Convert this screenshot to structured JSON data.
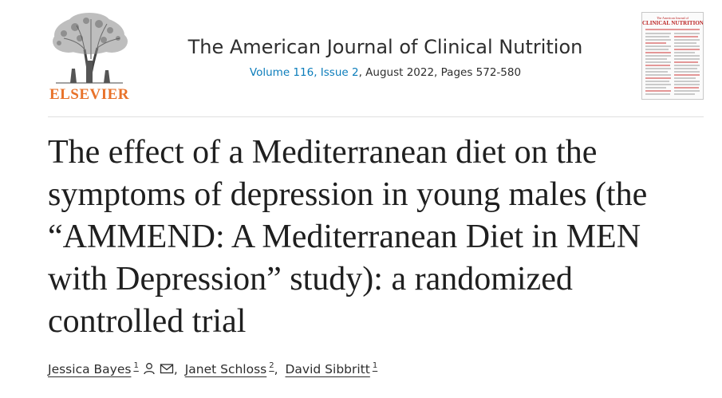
{
  "header": {
    "publisher": "ELSEVIER",
    "journal_title": "The American Journal of Clinical Nutrition",
    "issue_link": "Volume 116, Issue 2",
    "issue_rest": ", August 2022, Pages 572-580",
    "cover_heading_small": "The American Journal of",
    "cover_heading": "CLINICAL NUTRITION"
  },
  "article": {
    "title": "The effect of a Mediterranean diet on the symptoms of depression in young males (the “AMMEND: A Mediterranean Diet in MEN with Depression” study): a randomized controlled trial"
  },
  "authors": [
    {
      "name": "Jessica Bayes",
      "affiliation": "1",
      "icons": [
        "person-icon",
        "envelope-icon"
      ]
    },
    {
      "name": "Janet Schloss",
      "affiliation": "2"
    },
    {
      "name": "David Sibbritt",
      "affiliation": "1"
    }
  ],
  "colors": {
    "publisher_orange": "#e8722a",
    "link_blue": "#0c7dbb",
    "text": "#1f1f1f"
  }
}
